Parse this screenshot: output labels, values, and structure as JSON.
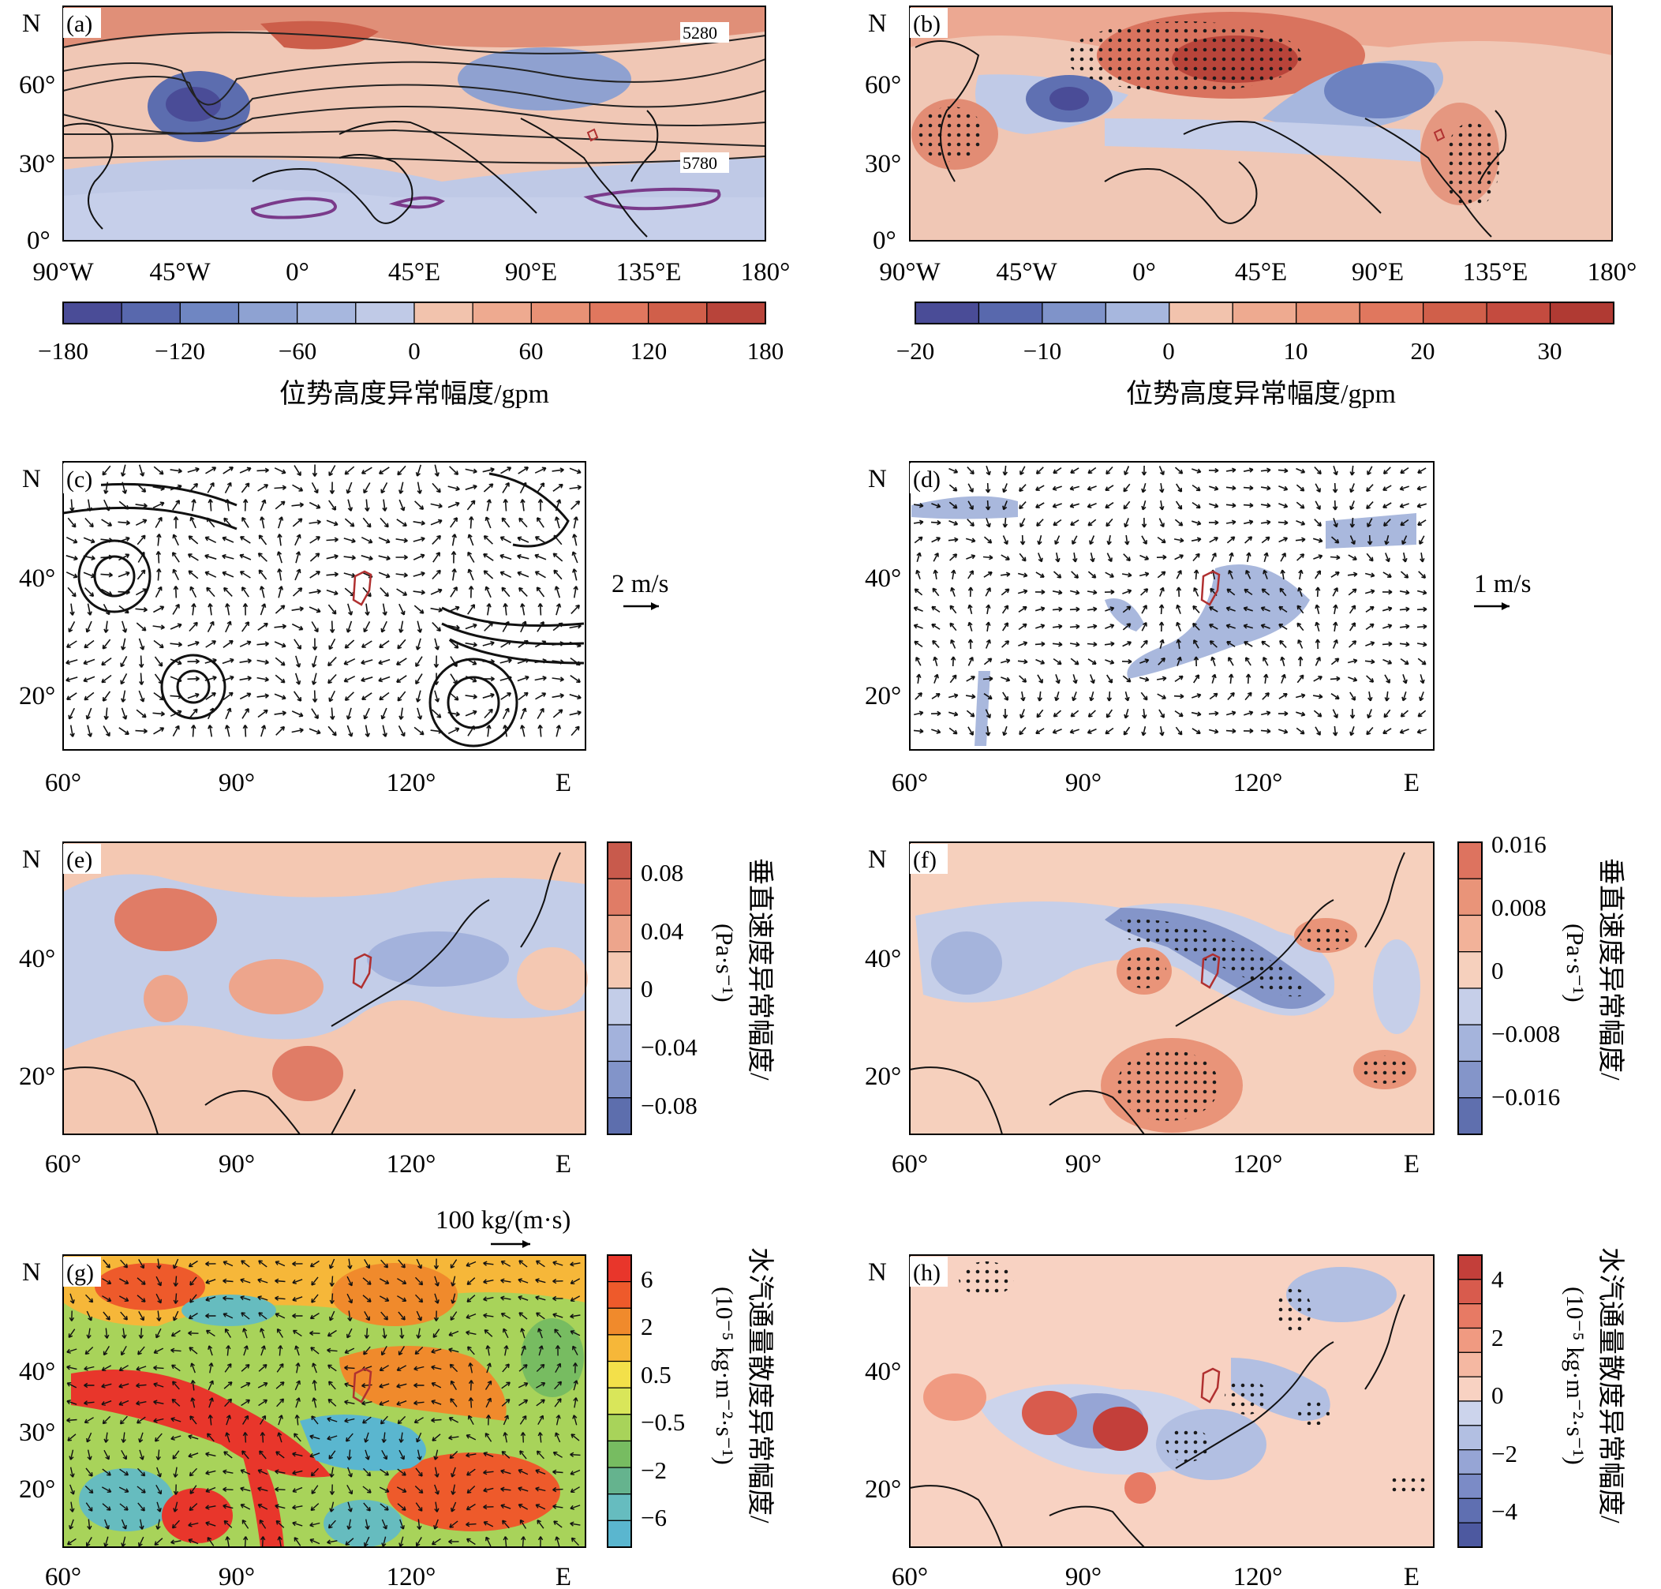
{
  "figure": {
    "panels": {
      "a": {
        "tag": "(a)",
        "north_label": "N",
        "lat_labels": [
          "60°",
          "30°",
          "0°"
        ],
        "lon_labels": [
          "90°W",
          "45°W",
          "0°",
          "45°E",
          "90°E",
          "135°E",
          "180°"
        ],
        "contour_labels": [
          "5280",
          "5780"
        ],
        "colorbar": {
          "ticks": [
            "−180",
            "−120",
            "−60",
            "0",
            "60",
            "120",
            "180"
          ],
          "title": "位势高度异常幅度/gpm",
          "colors": [
            "#4a4c97",
            "#5868ad",
            "#6f86c2",
            "#8ea2d2",
            "#a7b7de",
            "#c0cae7",
            "#f2c3ad",
            "#eeaa90",
            "#e89175",
            "#e0775e",
            "#d05f4a",
            "#b8443a"
          ]
        }
      },
      "b": {
        "tag": "(b)",
        "north_label": "N",
        "lat_labels": [
          "60°",
          "30°",
          "0°"
        ],
        "lon_labels": [
          "90°W",
          "45°W",
          "0°",
          "45°E",
          "90°E",
          "135°E",
          "180°"
        ],
        "colorbar": {
          "ticks": [
            "−20",
            "−10",
            "0",
            "10",
            "20",
            "30"
          ],
          "title": "位势高度异常幅度/gpm",
          "colors": [
            "#4a4c97",
            "#5868ad",
            "#7f93c9",
            "#a7b7de",
            "#f2c3ad",
            "#eeaa90",
            "#e89175",
            "#e0775e",
            "#d05f4a",
            "#c44b3f",
            "#b03a33"
          ]
        }
      },
      "c": {
        "tag": "(c)",
        "north_label": "N",
        "lat_labels": [
          "40°",
          "20°"
        ],
        "lon_labels": [
          "60°",
          "90°",
          "120°",
          "E"
        ],
        "ref_vector": "2 m/s"
      },
      "d": {
        "tag": "(d)",
        "north_label": "N",
        "lat_labels": [
          "40°",
          "20°"
        ],
        "lon_labels": [
          "60°",
          "90°",
          "120°",
          "E"
        ],
        "ref_vector": "1 m/s"
      },
      "e": {
        "tag": "(e)",
        "north_label": "N",
        "lat_labels": [
          "40°",
          "20°"
        ],
        "lon_labels": [
          "60°",
          "90°",
          "120°",
          "E"
        ],
        "colorbar": {
          "ticks": [
            "0.08",
            "0.04",
            "0",
            "−0.04",
            "−0.08"
          ],
          "title": "垂直速度异常幅度/",
          "unit": "(Pa·s⁻¹)",
          "colors": [
            "#c85a4c",
            "#e07c66",
            "#eda58c",
            "#f4c8b2",
            "#c3cde8",
            "#a3b2dc",
            "#8294c9",
            "#5d6ead"
          ]
        }
      },
      "f": {
        "tag": "(f)",
        "north_label": "N",
        "lat_labels": [
          "40°",
          "20°"
        ],
        "lon_labels": [
          "60°",
          "90°",
          "120°",
          "E"
        ],
        "colorbar": {
          "ticks": [
            "0.016",
            "0.008",
            "0",
            "−0.008",
            "−0.016"
          ],
          "title": "垂直速度异常幅度/",
          "unit": "(Pa·s⁻¹)",
          "colors": [
            "#dd735f",
            "#e99479",
            "#f2b299",
            "#f6d0bd",
            "#c6cfe9",
            "#a5b4dc",
            "#8495c9",
            "#5f6fae"
          ]
        }
      },
      "g": {
        "tag": "(g)",
        "north_label": "N",
        "lat_labels": [
          "40°",
          "30°",
          "20°"
        ],
        "lon_labels": [
          "60°",
          "90°",
          "120°",
          "E"
        ],
        "ref_vector": "100 kg/(m·s)",
        "colorbar": {
          "ticks": [
            "6",
            "2",
            "0.5",
            "−0.5",
            "−2",
            "−6"
          ],
          "title": "水汽通量散度异常幅度/",
          "unit": "(10⁻⁵ kg·m⁻²·s⁻¹)",
          "colors": [
            "#e8362b",
            "#ee5a2b",
            "#f08a2c",
            "#f6b739",
            "#f3e04a",
            "#d9e65a",
            "#a8d35a",
            "#77bc61",
            "#65b38e",
            "#66bcbf",
            "#5ab6cf"
          ]
        }
      },
      "h": {
        "tag": "(h)",
        "north_label": "N",
        "lat_labels": [
          "40°",
          "20°"
        ],
        "lon_labels": [
          "60°",
          "90°",
          "120°",
          "E"
        ],
        "colorbar": {
          "ticks": [
            "4",
            "2",
            "0",
            "−2",
            "−4"
          ],
          "title": "水汽通量散度异常幅度/",
          "unit": "(10⁻⁵ kg·m⁻²·s⁻¹)",
          "colors": [
            "#c33f3a",
            "#d85b4d",
            "#e77a64",
            "#f09a81",
            "#f5b8a2",
            "#f8d2c2",
            "#ccd4ec",
            "#b2bfe2",
            "#96a5d5",
            "#7b8bc6",
            "#5f6fb1",
            "#4d59a0"
          ]
        }
      }
    }
  }
}
